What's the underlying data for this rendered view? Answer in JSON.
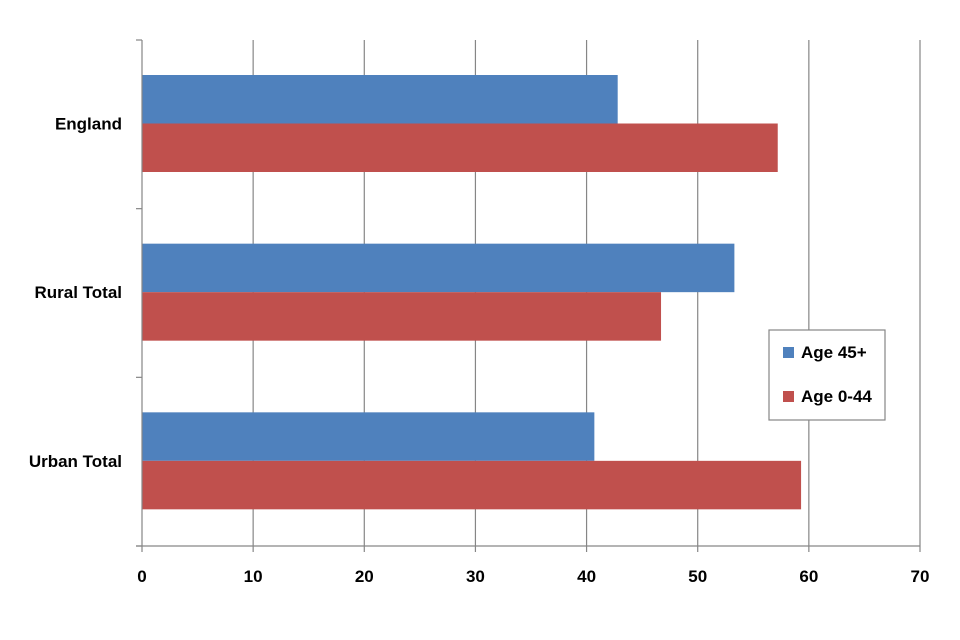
{
  "chart_data": {
    "type": "bar",
    "orientation": "horizontal",
    "categories": [
      "England",
      "Rural Total",
      "Urban Total"
    ],
    "series": [
      {
        "name": "Age 45+",
        "values": [
          42.8,
          53.3,
          40.7
        ],
        "color": "#4F81BD"
      },
      {
        "name": "Age 0-44",
        "values": [
          57.2,
          46.7,
          59.3
        ],
        "color": "#C0504D"
      }
    ],
    "xlim": [
      0,
      70
    ],
    "xticks": [
      0,
      10,
      20,
      30,
      40,
      50,
      60,
      70
    ],
    "grid": true,
    "legend_position": "right"
  }
}
